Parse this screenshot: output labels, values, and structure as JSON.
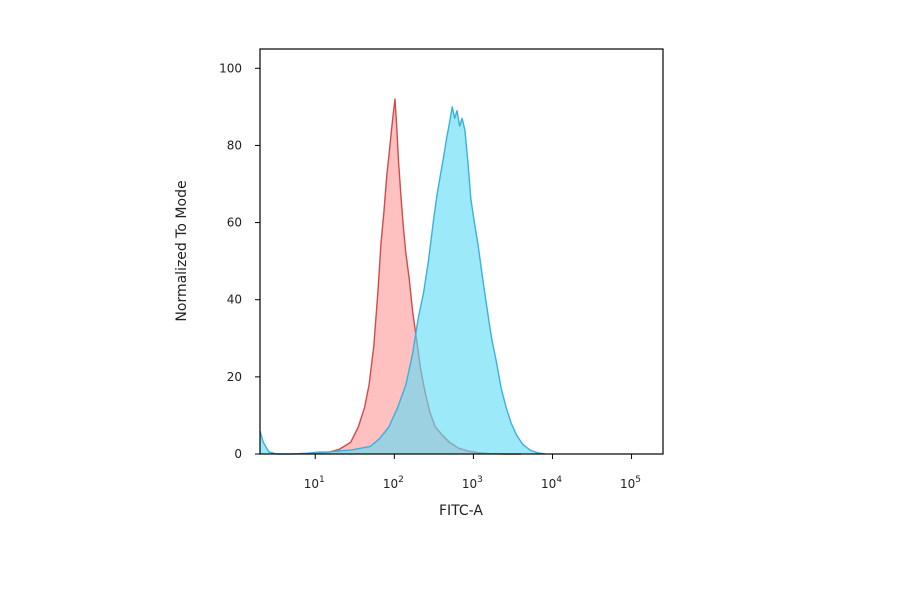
{
  "chart_data": {
    "type": "area",
    "xlabel": "FITC-A",
    "ylabel": "Normalized To Mode",
    "x_scale": "log",
    "xlim": [
      2,
      250000
    ],
    "ylim": [
      0,
      105
    ],
    "yticks": [
      {
        "value": 0,
        "label": "0"
      },
      {
        "value": 20,
        "label": "20"
      },
      {
        "value": 40,
        "label": "40"
      },
      {
        "value": 60,
        "label": "60"
      },
      {
        "value": 80,
        "label": "80"
      },
      {
        "value": 100,
        "label": "100"
      }
    ],
    "xticks": [
      {
        "value": 10,
        "base": "10",
        "exp": "1"
      },
      {
        "value": 100,
        "base": "10",
        "exp": "2"
      },
      {
        "value": 1000,
        "base": "10",
        "exp": "3"
      },
      {
        "value": 10000,
        "base": "10",
        "exp": "4"
      },
      {
        "value": 100000,
        "base": "10",
        "exp": "5"
      }
    ],
    "grid": false,
    "legend": "none",
    "series": [
      {
        "fill": "#ff9a9a",
        "stroke": "#d24a4a",
        "x": [
          8,
          15,
          20,
          28,
          35,
          42,
          48,
          55,
          62,
          68,
          74,
          80,
          86,
          92,
          98,
          102,
          107,
          113,
          121,
          130,
          140,
          155,
          170,
          190,
          215,
          245,
          280,
          330,
          400,
          500,
          650,
          850,
          1150,
          1600,
          2500,
          4000
        ],
        "values": [
          0,
          0.5,
          1.2,
          3,
          7,
          12,
          18,
          28,
          42,
          55,
          63,
          72,
          78,
          84,
          89,
          92,
          85,
          76,
          67,
          59,
          52,
          45,
          37,
          30,
          22,
          16,
          11,
          7,
          5,
          3,
          1.5,
          0.8,
          0.3,
          0.1,
          0,
          0
        ]
      },
      {
        "fill": "#5fdcf5",
        "stroke": "#3ab0e0",
        "x": [
          2,
          2.2,
          2.6,
          3.3,
          5,
          8,
          11,
          14,
          20,
          28,
          38,
          50,
          65,
          85,
          110,
          140,
          170,
          200,
          235,
          270,
          310,
          345,
          380,
          420,
          460,
          500,
          540,
          580,
          620,
          670,
          720,
          780,
          850,
          930,
          1030,
          1150,
          1300,
          1480,
          1700,
          1950,
          2250,
          2600,
          3000,
          3500,
          4200,
          5200,
          6500,
          8000
        ],
        "values": [
          6,
          3,
          0.5,
          0,
          0,
          0.2,
          0.5,
          0.5,
          0.8,
          1,
          1.5,
          2,
          4,
          7,
          12,
          18,
          26,
          35,
          42,
          50,
          60,
          67,
          72,
          77,
          82,
          86,
          90,
          87,
          89,
          85,
          87,
          84,
          76,
          66,
          60,
          54,
          46,
          38,
          30,
          24,
          17,
          12,
          8,
          5,
          2.5,
          1,
          0.3,
          0
        ]
      }
    ]
  }
}
